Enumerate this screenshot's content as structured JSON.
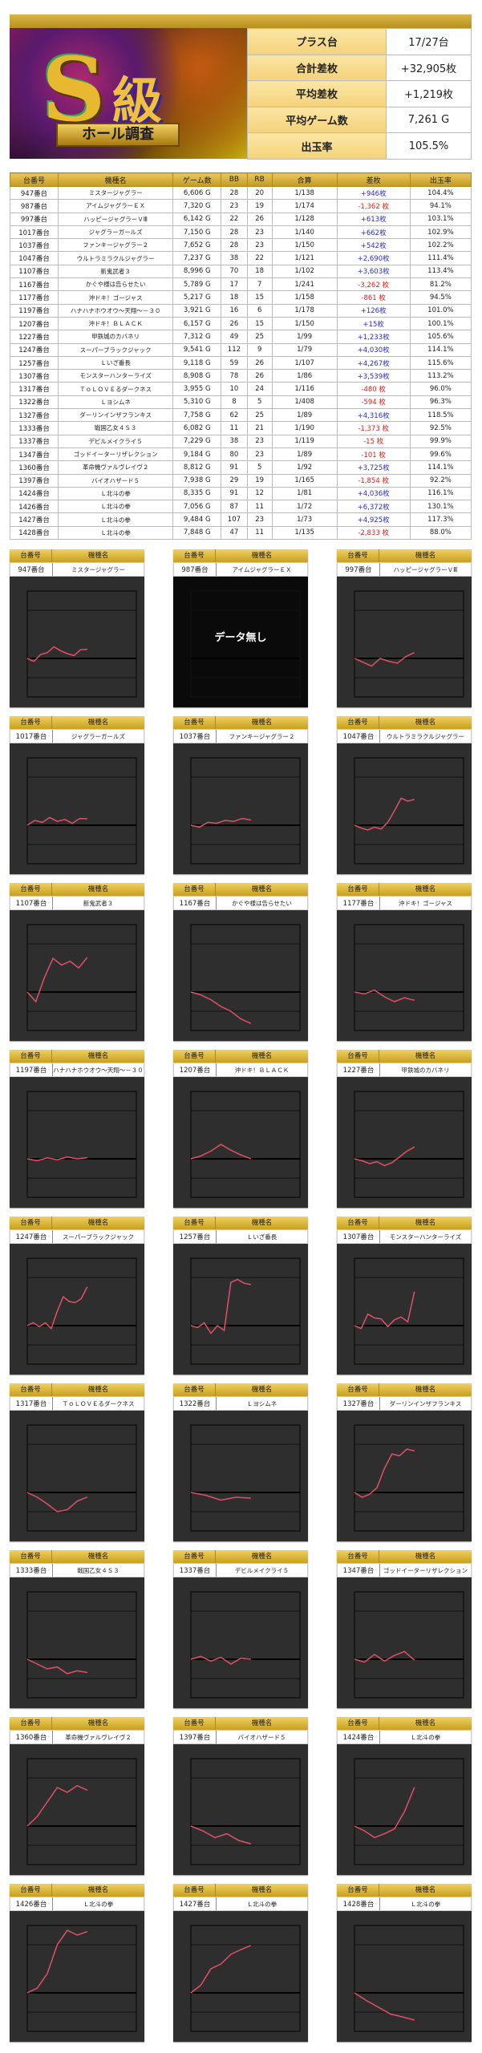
{
  "logo": {
    "big": "S",
    "kyu": "級",
    "banner": "ホール調査"
  },
  "summary": [
    {
      "label": "プラス台",
      "value": "17/27台"
    },
    {
      "label": "合計差枚",
      "value": "+32,905枚"
    },
    {
      "label": "平均差枚",
      "value": "+1,219枚"
    },
    {
      "label": "平均ゲーム数",
      "value": "7,261 G"
    },
    {
      "label": "出玉率",
      "value": "105.5%"
    }
  ],
  "table": {
    "headers": [
      "台番号",
      "機種名",
      "ゲーム数",
      "BB",
      "RB",
      "合算",
      "差枚",
      "出玉率"
    ],
    "rows": [
      [
        "947番台",
        "ミスタージャグラー",
        "6,606 G",
        "28",
        "20",
        "1/138",
        "+946枚",
        "104.4%"
      ],
      [
        "987番台",
        "アイムジャグラーＥＸ",
        "7,320 G",
        "23",
        "19",
        "1/174",
        "-1,362 枚",
        "94.1%"
      ],
      [
        "997番台",
        "ハッピージャグラーＶⅢ",
        "6,142 G",
        "22",
        "26",
        "1/128",
        "+613枚",
        "103.1%"
      ],
      [
        "1017番台",
        "ジャグラーガールズ",
        "7,150 G",
        "28",
        "23",
        "1/140",
        "+662枚",
        "102.9%"
      ],
      [
        "1037番台",
        "ファンキージャグラー２",
        "7,652 G",
        "28",
        "23",
        "1/150",
        "+542枚",
        "102.2%"
      ],
      [
        "1047番台",
        "ウルトラミラクルジャグラー",
        "7,237 G",
        "38",
        "22",
        "1/121",
        "+2,690枚",
        "111.4%"
      ],
      [
        "1107番台",
        "新鬼武者３",
        "8,996 G",
        "70",
        "18",
        "1/102",
        "+3,603枚",
        "113.4%"
      ],
      [
        "1167番台",
        "かぐや様は告らせたい",
        "5,789 G",
        "17",
        "7",
        "1/241",
        "-3,262 枚",
        "81.2%"
      ],
      [
        "1177番台",
        "沖ドキ！ゴージャス",
        "5,217 G",
        "18",
        "15",
        "1/158",
        "-861 枚",
        "94.5%"
      ],
      [
        "1197番台",
        "ハナハナホウオウ～天翔～－３０",
        "3,921 G",
        "16",
        "6",
        "1/178",
        "+126枚",
        "101.0%"
      ],
      [
        "1207番台",
        "沖ドキ！ＢＬＡＣＫ",
        "6,157 G",
        "26",
        "15",
        "1/150",
        "+15枚",
        "100.1%"
      ],
      [
        "1227番台",
        "甲鉄城のカバネリ",
        "7,312 G",
        "49",
        "25",
        "1/99",
        "+1,233枚",
        "105.6%"
      ],
      [
        "1247番台",
        "スーパーブラックジャック",
        "9,541 G",
        "112",
        "9",
        "1/79",
        "+4,030枚",
        "114.1%"
      ],
      [
        "1257番台",
        "Ｌいざ番長",
        "9,118 G",
        "59",
        "26",
        "1/107",
        "+4,267枚",
        "115.6%"
      ],
      [
        "1307番台",
        "モンスターハンターライズ",
        "8,908 G",
        "78",
        "26",
        "1/86",
        "+3,539枚",
        "113.2%"
      ],
      [
        "1317番台",
        "ＴｏＬＯＶＥるダークネス",
        "3,955 G",
        "10",
        "24",
        "1/116",
        "-480 枚",
        "96.0%"
      ],
      [
        "1322番台",
        "Ｌヨシムネ",
        "5,310 G",
        "8",
        "5",
        "1/408",
        "-594 枚",
        "96.3%"
      ],
      [
        "1327番台",
        "ダーリンインザフランキス",
        "7,758 G",
        "62",
        "25",
        "1/89",
        "+4,316枚",
        "118.5%"
      ],
      [
        "1333番台",
        "戦国乙女４Ｓ３",
        "6,082 G",
        "11",
        "21",
        "1/190",
        "-1,373 枚",
        "92.5%"
      ],
      [
        "1337番台",
        "デビルメイクライ５",
        "7,229 G",
        "38",
        "23",
        "1/119",
        "-15 枚",
        "99.9%"
      ],
      [
        "1347番台",
        "ゴッドイーターリザレクション",
        "9,184 G",
        "80",
        "23",
        "1/89",
        "-101 枚",
        "99.6%"
      ],
      [
        "1360番台",
        "革命機ヴァルヴレイヴ２",
        "8,812 G",
        "91",
        "5",
        "1/92",
        "+3,725枚",
        "114.1%"
      ],
      [
        "1397番台",
        "バイオハザード５",
        "7,938 G",
        "29",
        "19",
        "1/165",
        "-1,854 枚",
        "92.2%"
      ],
      [
        "1424番台",
        "Ｌ北斗の拳",
        "8,335 G",
        "91",
        "12",
        "1/81",
        "+4,036枚",
        "116.1%"
      ],
      [
        "1426番台",
        "Ｌ北斗の拳",
        "7,056 G",
        "87",
        "11",
        "1/72",
        "+6,372枚",
        "130.1%"
      ],
      [
        "1427番台",
        "Ｌ北斗の拳",
        "9,484 G",
        "107",
        "23",
        "1/73",
        "+4,925枚",
        "117.3%"
      ],
      [
        "1428番台",
        "Ｌ北斗の拳",
        "7,848 G",
        "47",
        "11",
        "1/135",
        "-2,833 枚",
        "88.0%"
      ]
    ]
  },
  "colors": {
    "gold": "#c8a020",
    "positive": "#2a2ad0",
    "negative": "#e02020",
    "line": "#e0506a",
    "chart_bg": "#2e2e2e"
  },
  "cards": {
    "label_no": "台番号",
    "label_name": "機種名",
    "no_data": "データ無し"
  },
  "chart_data": {
    "type": "line",
    "ylim": [
      -4000,
      7000
    ],
    "series": [
      [
        0,
        -300,
        400,
        600,
        1200,
        800,
        500,
        300,
        900,
        946
      ],
      null,
      [
        0,
        -400,
        -800,
        0,
        -300,
        -500,
        200,
        613
      ],
      [
        0,
        500,
        300,
        800,
        400,
        600,
        200,
        700,
        662
      ],
      [
        0,
        -200,
        300,
        200,
        500,
        400,
        700,
        542
      ],
      [
        0,
        -300,
        -500,
        -200,
        -400,
        300,
        1500,
        2800,
        2500,
        2690
      ],
      [
        0,
        -1000,
        1500,
        3500,
        2800,
        3200,
        2500,
        3603
      ],
      [
        0,
        -300,
        -800,
        -1500,
        -2000,
        -2800,
        -3262
      ],
      [
        0,
        -200,
        200,
        -500,
        -1000,
        -600,
        -861
      ],
      [
        0,
        -200,
        100,
        -100,
        200,
        0,
        126
      ],
      [
        0,
        300,
        800,
        1500,
        900,
        400,
        15
      ],
      [
        0,
        -200,
        -500,
        -300,
        -700,
        -400,
        200,
        800,
        1233
      ],
      [
        0,
        300,
        -100,
        300,
        -300,
        1500,
        3000,
        2500,
        2400,
        2800,
        4030
      ],
      [
        0,
        -200,
        300,
        -800,
        0,
        -500,
        4500,
        4800,
        4400,
        4267
      ],
      [
        0,
        -300,
        1200,
        800,
        700,
        -100,
        600,
        900,
        400,
        3539
      ],
      [
        0,
        -500,
        -1200,
        -2000,
        -1800,
        -900,
        -480
      ],
      [
        0,
        -300,
        -800,
        -500,
        -594
      ],
      [
        0,
        -500,
        -200,
        500,
        2500,
        4000,
        3800,
        4500,
        4316
      ],
      [
        0,
        -500,
        -1000,
        -800,
        -1500,
        -1200,
        -1373
      ],
      [
        0,
        300,
        -200,
        200,
        -500,
        100,
        -15
      ],
      [
        0,
        -300,
        500,
        -200,
        400,
        800,
        -101
      ],
      [
        0,
        1000,
        2500,
        4000,
        3500,
        4200,
        3725
      ],
      [
        0,
        -500,
        -1200,
        -800,
        -1500,
        -1854
      ],
      [
        0,
        -500,
        -1200,
        -800,
        -300,
        1500,
        4036
      ],
      [
        0,
        500,
        2000,
        5000,
        6500,
        6000,
        6372
      ],
      [
        0,
        800,
        2500,
        3000,
        4000,
        4500,
        4925
      ],
      [
        0,
        -800,
        -1500,
        -2200,
        -2500,
        -2833
      ]
    ]
  }
}
